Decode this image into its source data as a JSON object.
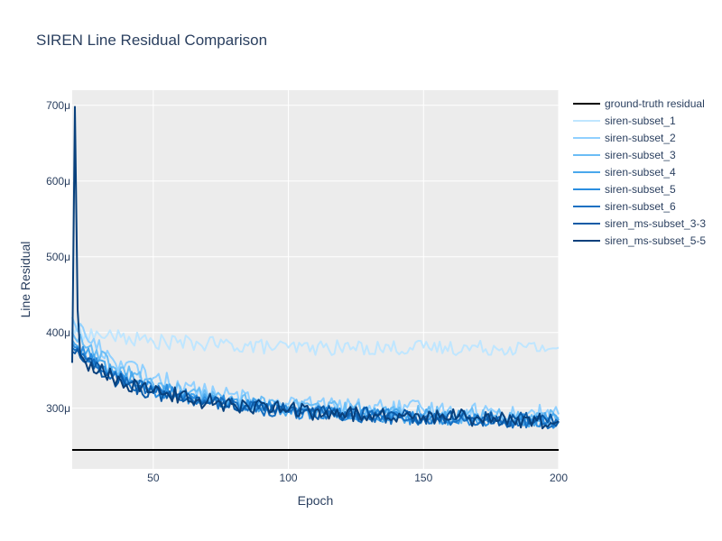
{
  "chart_data": {
    "type": "line",
    "title": "SIREN Line Residual Comparison",
    "xlabel": "Epoch",
    "ylabel": "Line Residual",
    "xlim": [
      20,
      200
    ],
    "ylim": [
      220,
      720
    ],
    "xticks": [
      50,
      100,
      150,
      200
    ],
    "xtick_labels": [
      "50",
      "100",
      "150",
      "200"
    ],
    "yticks": [
      300,
      400,
      500,
      600,
      700
    ],
    "ytick_labels": [
      "300μ",
      "400μ",
      "500μ",
      "600μ",
      "700μ"
    ],
    "y_unit": "μ",
    "grid": true,
    "legend_position": "right",
    "plot_background": "#ececec",
    "series": [
      {
        "name": "ground-truth residual",
        "color": "#000000",
        "kind": "constant",
        "value": 245
      },
      {
        "name": "siren-subset_1",
        "color": "#bfe6ff",
        "kind": "noisy",
        "points": [
          [
            20,
            405
          ],
          [
            25,
            398
          ],
          [
            35,
            395
          ],
          [
            50,
            388
          ],
          [
            70,
            385
          ],
          [
            100,
            380
          ],
          [
            150,
            380
          ],
          [
            200,
            380
          ]
        ],
        "noise": 10
      },
      {
        "name": "siren-subset_2",
        "color": "#90d0ff",
        "kind": "noisy",
        "points": [
          [
            20,
            420
          ],
          [
            25,
            395
          ],
          [
            35,
            365
          ],
          [
            50,
            340
          ],
          [
            70,
            320
          ],
          [
            100,
            305
          ],
          [
            150,
            298
          ],
          [
            200,
            292
          ]
        ],
        "noise": 12
      },
      {
        "name": "siren-subset_3",
        "color": "#6bbdf5",
        "kind": "noisy",
        "points": [
          [
            20,
            400
          ],
          [
            25,
            380
          ],
          [
            35,
            355
          ],
          [
            50,
            332
          ],
          [
            70,
            315
          ],
          [
            100,
            302
          ],
          [
            150,
            292
          ],
          [
            200,
            288
          ]
        ],
        "noise": 11
      },
      {
        "name": "siren-subset_4",
        "color": "#4aa8ec",
        "kind": "noisy",
        "points": [
          [
            20,
            390
          ],
          [
            25,
            372
          ],
          [
            35,
            348
          ],
          [
            50,
            328
          ],
          [
            70,
            312
          ],
          [
            100,
            298
          ],
          [
            150,
            289
          ],
          [
            200,
            284
          ]
        ],
        "noise": 10
      },
      {
        "name": "siren-subset_5",
        "color": "#2b8ee0",
        "kind": "noisy",
        "points": [
          [
            20,
            385
          ],
          [
            25,
            368
          ],
          [
            35,
            345
          ],
          [
            50,
            325
          ],
          [
            70,
            310
          ],
          [
            100,
            296
          ],
          [
            150,
            287
          ],
          [
            200,
            282
          ]
        ],
        "noise": 10
      },
      {
        "name": "siren-subset_6",
        "color": "#1770c2",
        "kind": "noisy",
        "points": [
          [
            20,
            380
          ],
          [
            25,
            365
          ],
          [
            35,
            342
          ],
          [
            50,
            322
          ],
          [
            70,
            308
          ],
          [
            100,
            295
          ],
          [
            150,
            286
          ],
          [
            200,
            281
          ]
        ],
        "noise": 9
      },
      {
        "name": "siren_ms-subset_3-3",
        "color": "#0b5aa6",
        "kind": "noisy",
        "points": [
          [
            20,
            375
          ],
          [
            25,
            360
          ],
          [
            35,
            340
          ],
          [
            50,
            320
          ],
          [
            70,
            307
          ],
          [
            100,
            296
          ],
          [
            150,
            288
          ],
          [
            200,
            283
          ]
        ],
        "noise": 10
      },
      {
        "name": "siren_ms-subset_5-5",
        "color": "#08407c",
        "kind": "noisy",
        "points": [
          [
            20,
            360
          ],
          [
            21,
            698
          ],
          [
            22,
            430
          ],
          [
            23,
            370
          ],
          [
            25,
            360
          ],
          [
            35,
            340
          ],
          [
            50,
            322
          ],
          [
            70,
            309
          ],
          [
            85,
            303
          ],
          [
            100,
            297
          ],
          [
            130,
            292
          ],
          [
            150,
            290
          ],
          [
            200,
            283
          ]
        ],
        "noise": 11
      }
    ]
  }
}
